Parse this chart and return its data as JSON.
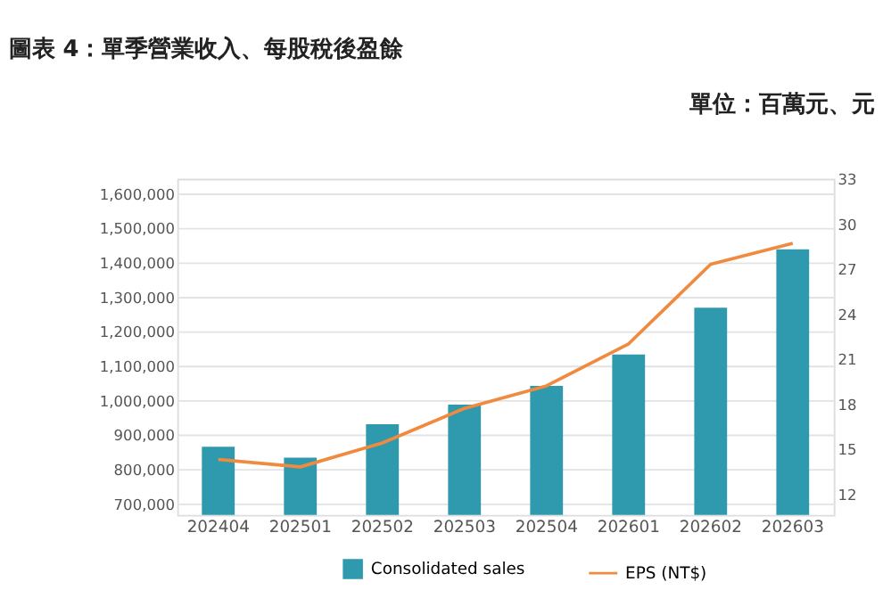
{
  "chart_data": {
    "type": "bar",
    "title": "圖表 4：單季營業收入、每股稅後盈餘",
    "annotations": [
      "單位：百萬元、元"
    ],
    "categories": [
      "202404",
      "202501",
      "202502",
      "202503",
      "202504",
      "202601",
      "202602",
      "202603"
    ],
    "series": [
      {
        "name": "Consolidated sales",
        "color": "#2f9aae",
        "values": [
          866000,
          834000,
          931000,
          988000,
          1042000,
          1133000,
          1269000,
          1438000
        ]
      },
      {
        "name": "EPS (NT$)",
        "type": "line",
        "axis": "y2",
        "color": "#f08a3e",
        "values": [
          14.3,
          13.8,
          15.4,
          17.7,
          19.2,
          22.0,
          27.3,
          28.7
        ]
      }
    ],
    "ylim": [
      668000,
      1643000
    ],
    "yticks": [
      {
        "value": 700000,
        "label": "700,000"
      },
      {
        "value": 800000,
        "label": "800,000"
      },
      {
        "value": 900000,
        "label": "900,000"
      },
      {
        "value": 1000000,
        "label": "1,000,000"
      },
      {
        "value": 1100000,
        "label": "1,100,000"
      },
      {
        "value": 1200000,
        "label": "1,200,000"
      },
      {
        "value": 1300000,
        "label": "1,300,000"
      },
      {
        "value": 1400000,
        "label": "1,400,000"
      },
      {
        "value": 1500000,
        "label": "1,500,000"
      },
      {
        "value": 1600000,
        "label": "1,600,000"
      }
    ],
    "y2lim": [
      10.6,
      33
    ],
    "y2ticks": [
      12,
      15,
      18,
      21,
      24,
      27,
      30,
      33
    ],
    "grid": "y",
    "legend": "bottom"
  }
}
